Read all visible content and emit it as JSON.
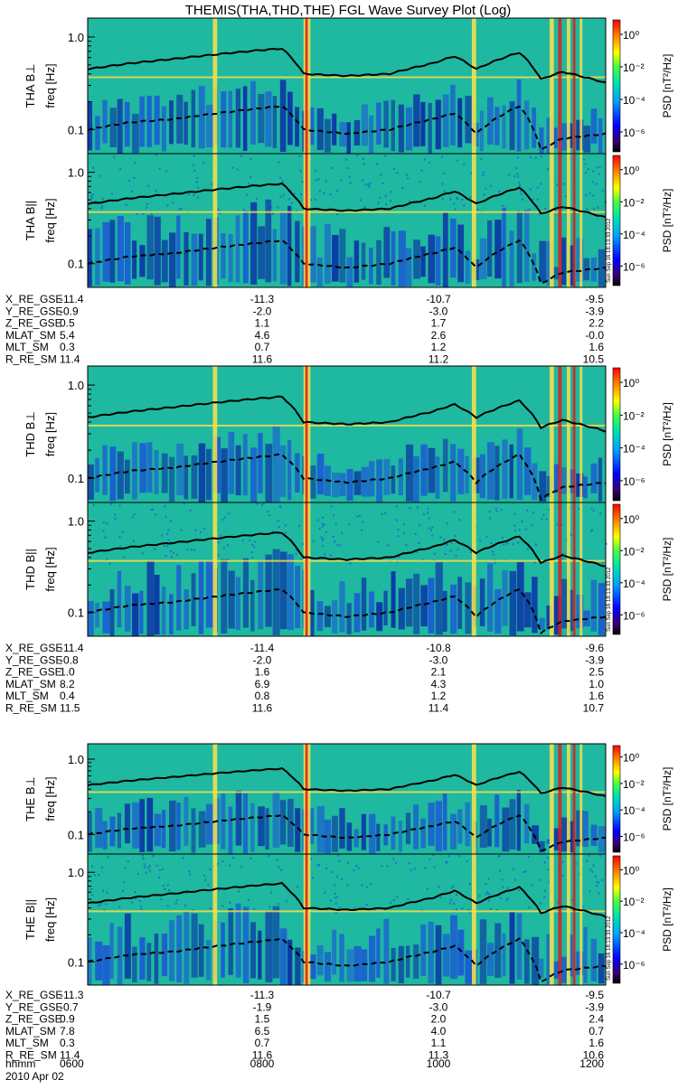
{
  "title": "THEMIS(THA,THD,THE) FGL Wave Survey Plot (Log)",
  "colors": {
    "spec_bg": "#1fb8a0",
    "spec_blue": "#1b55d6",
    "spec_dark": "#0b2aa8",
    "spec_yellow": "#ffe14a",
    "spec_red": "#e01b1b",
    "line": "#000000"
  },
  "colorbar": {
    "label": "PSD [nT²/Hz]",
    "ticks": [
      "10⁰",
      "10⁻²",
      "10⁻⁴",
      "10⁻⁶"
    ]
  },
  "yticks": [
    "1.0",
    "0.1"
  ],
  "ylabel_unit": "freq [Hz]",
  "stamp": "Sun Sep 16 18:13:33 2012",
  "probes": [
    {
      "panels": [
        {
          "label": "THA B⊥",
          "seed": 11
        },
        {
          "label": "THA B||",
          "seed": 12
        }
      ],
      "eph": [
        {
          "name": "X_RE_GSE",
          "values": [
            "-11.4",
            "-11.3",
            "-10.7",
            "-9.5"
          ]
        },
        {
          "name": "Y_RE_GSE",
          "values": [
            "-0.9",
            "-2.0",
            "-3.0",
            "-3.9"
          ]
        },
        {
          "name": "Z_RE_GSE",
          "values": [
            "0.5",
            "1.1",
            "1.7",
            "2.2"
          ]
        },
        {
          "name": "MLAT_SM",
          "values": [
            "5.4",
            "4.6",
            "2.6",
            "-0.0"
          ]
        },
        {
          "name": "MLT_SM",
          "values": [
            "0.3",
            "0.7",
            "1.2",
            "1.6"
          ]
        },
        {
          "name": "R_RE_SM",
          "values": [
            "11.4",
            "11.6",
            "11.2",
            "10.5"
          ]
        }
      ]
    },
    {
      "panels": [
        {
          "label": "THD B⊥",
          "seed": 21
        },
        {
          "label": "THD B||",
          "seed": 22
        }
      ],
      "eph": [
        {
          "name": "X_RE_GSE",
          "values": [
            "-11.4",
            "-11.4",
            "-10.8",
            "-9.6"
          ]
        },
        {
          "name": "Y_RE_GSE",
          "values": [
            "-0.8",
            "-2.0",
            "-3.0",
            "-3.9"
          ]
        },
        {
          "name": "Z_RE_GSE",
          "values": [
            "1.0",
            "1.6",
            "2.1",
            "2.5"
          ]
        },
        {
          "name": "MLAT_SM",
          "values": [
            "8.2",
            "6.9",
            "4.3",
            "1.0"
          ]
        },
        {
          "name": "MLT_SM",
          "values": [
            "0.4",
            "0.8",
            "1.2",
            "1.6"
          ]
        },
        {
          "name": "R_RE_SM",
          "values": [
            "11.5",
            "11.6",
            "11.4",
            "10.7"
          ]
        }
      ]
    },
    {
      "panels": [
        {
          "label": "THE B⊥",
          "seed": 31
        },
        {
          "label": "THE B||",
          "seed": 32
        }
      ],
      "eph": [
        {
          "name": "X_RE_GSE",
          "values": [
            "-11.3",
            "-11.3",
            "-10.7",
            "-9.5"
          ]
        },
        {
          "name": "Y_RE_GSE",
          "values": [
            "-0.7",
            "-1.9",
            "-3.0",
            "-3.9"
          ]
        },
        {
          "name": "Z_RE_GSE",
          "values": [
            "0.9",
            "1.5",
            "2.0",
            "2.4"
          ]
        },
        {
          "name": "MLAT_SM",
          "values": [
            "7.8",
            "6.5",
            "4.0",
            "0.7"
          ]
        },
        {
          "name": "MLT_SM",
          "values": [
            "0.3",
            "0.7",
            "1.1",
            "1.6"
          ]
        },
        {
          "name": "R_RE_SM",
          "values": [
            "11.4",
            "11.6",
            "11.3",
            "10.6"
          ]
        }
      ]
    }
  ],
  "time_row": {
    "name": "hhmm",
    "values": [
      "0600",
      "0800",
      "1000",
      "1200"
    ]
  },
  "date": "2010 Apr 02",
  "chart_data": {
    "type": "heatmap",
    "title": "THEMIS(THA,THD,THE) FGL Wave Survey Plot (Log)",
    "xlabel": "hhmm",
    "x_ticks": [
      "0600",
      "0800",
      "1000",
      "1200"
    ],
    "ylabel": "freq [Hz]",
    "yscale": "log",
    "ylim": [
      0.055,
      1.6
    ],
    "colorbar_label": "PSD [nT²/Hz]",
    "colorbar_range_log10": [
      -7,
      1.5
    ],
    "panels": [
      "THA B⊥",
      "THA B||",
      "THD B⊥",
      "THD B||",
      "THE B⊥",
      "THE B||"
    ],
    "overlay_lines": {
      "time_hours": [
        6.0,
        6.5,
        7.0,
        7.5,
        8.0,
        8.25,
        8.5,
        9.0,
        9.5,
        10.0,
        10.25,
        10.5,
        11.0,
        11.25,
        11.5,
        12.0
      ],
      "solid_freq_hz": [
        0.45,
        0.52,
        0.58,
        0.65,
        0.72,
        0.75,
        0.4,
        0.38,
        0.4,
        0.52,
        0.62,
        0.45,
        0.68,
        0.35,
        0.42,
        0.32
      ],
      "dashed_freq_hz": [
        0.1,
        0.12,
        0.13,
        0.15,
        0.17,
        0.18,
        0.1,
        0.09,
        0.1,
        0.13,
        0.15,
        0.09,
        0.18,
        0.06,
        0.08,
        0.09
      ]
    }
  }
}
